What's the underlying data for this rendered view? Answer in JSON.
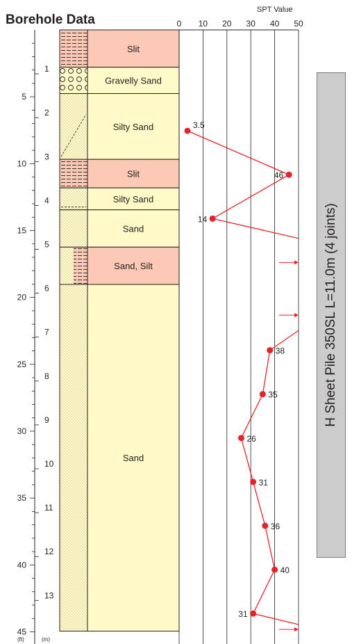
{
  "title": "Borehole Data",
  "spt_axis_title": "SPT Value",
  "unit_labels": {
    "ft": "(ft)",
    "m": "(m)"
  },
  "pile_label": "H Sheet Pile 350SL  L=11.0m (4 joints)",
  "colors": {
    "silt": "#fbc9b5",
    "sand": "#fffac8",
    "spt": "#e3242b",
    "line": "#231f20"
  },
  "chart_data": {
    "type": "line",
    "title": "Borehole Data",
    "xlabel": "SPT Value",
    "xlim": [
      0,
      50
    ],
    "x_ticks": [
      0,
      10,
      20,
      30,
      40,
      50
    ],
    "depth_m_range": [
      0,
      13.7
    ],
    "depth_m_ticks": [
      "1",
      "2",
      "3",
      "4",
      "5",
      "6",
      "7",
      "8",
      "9",
      "10",
      "11",
      "12",
      "13"
    ],
    "depth_ft_ticks": [
      "5",
      "10",
      "15",
      "20",
      "25",
      "30",
      "35",
      "40",
      "45"
    ],
    "layers": [
      {
        "name": "Slit",
        "top_m": 0,
        "bottom_m": 0.85,
        "soil": "silt"
      },
      {
        "name": "Gravelly Sand",
        "top_m": 0.85,
        "bottom_m": 1.45,
        "soil": "gravel"
      },
      {
        "name": "Silty Sand",
        "top_m": 1.45,
        "bottom_m": 2.95,
        "soil": "siltysand"
      },
      {
        "name": "Slit",
        "top_m": 2.95,
        "bottom_m": 3.6,
        "soil": "silt"
      },
      {
        "name": "Silty Sand",
        "top_m": 3.6,
        "bottom_m": 4.1,
        "soil": "siltysand"
      },
      {
        "name": "Sand",
        "top_m": 4.1,
        "bottom_m": 4.95,
        "soil": "sand"
      },
      {
        "name": "Sand, Silt",
        "top_m": 4.95,
        "bottom_m": 5.8,
        "soil": "sandsilt"
      },
      {
        "name": "Sand",
        "top_m": 5.8,
        "bottom_m": 13.7,
        "soil": "sand"
      }
    ],
    "spt_points": [
      {
        "depth_m": 2.3,
        "value": 3.5,
        "label": "3.5"
      },
      {
        "depth_m": 3.3,
        "value": 46,
        "label": "46"
      },
      {
        "depth_m": 4.3,
        "value": 14,
        "label": "14"
      },
      {
        "depth_m": 7.3,
        "value": 38,
        "label": "38"
      },
      {
        "depth_m": 8.3,
        "value": 35,
        "label": "35"
      },
      {
        "depth_m": 9.3,
        "value": 26,
        "label": "26"
      },
      {
        "depth_m": 10.3,
        "value": 31,
        "label": "31"
      },
      {
        "depth_m": 11.3,
        "value": 36,
        "label": "36"
      },
      {
        "depth_m": 12.3,
        "value": 40,
        "label": "40"
      },
      {
        "depth_m": 13.3,
        "value": 31,
        "label": "31"
      }
    ],
    "over_range": [
      {
        "depth_m": 4.75,
        "value": 50
      },
      {
        "depth_m": 5.3,
        "value": 50
      },
      {
        "depth_m": 6.5,
        "value": 50
      },
      {
        "depth_m": 6.85,
        "value": 50
      },
      {
        "depth_m": 13.55,
        "value": 50
      }
    ]
  }
}
